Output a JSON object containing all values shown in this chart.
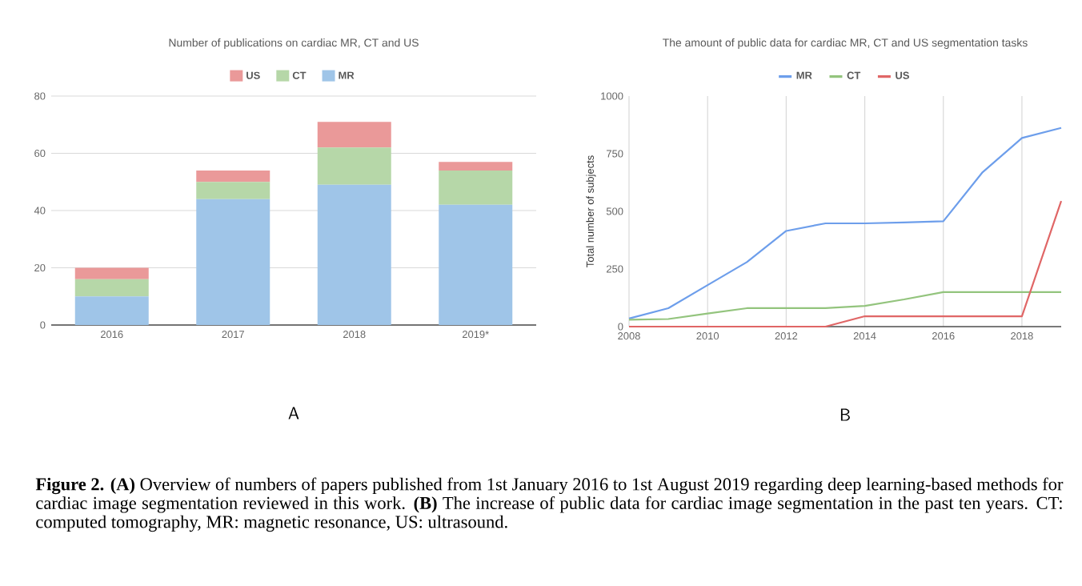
{
  "chart_data": [
    {
      "type": "bar",
      "title": "Number of publications on cardiac MR, CT and US",
      "stacked": true,
      "legend": "top",
      "grid": "y",
      "categories": [
        "2016",
        "2017",
        "2018",
        "2019*"
      ],
      "series": [
        {
          "name": "MR",
          "color": "#9fc5e8",
          "values": [
            10,
            44,
            49,
            42
          ]
        },
        {
          "name": "CT",
          "color": "#b6d7a8",
          "values": [
            6,
            6,
            13,
            12
          ]
        },
        {
          "name": "US",
          "color": "#ea9999",
          "values": [
            4,
            4,
            9,
            3
          ]
        }
      ],
      "ylim": [
        0,
        80
      ],
      "yticks": [
        0,
        20,
        40,
        60,
        80
      ],
      "annotations": [
        "A"
      ]
    },
    {
      "type": "line",
      "title": "The amount of public data for cardiac MR, CT and US segmentation tasks",
      "legend": "top",
      "grid": "x",
      "ylabel": "Total number of subjects",
      "x": [
        2008,
        2009,
        2010,
        2011,
        2012,
        2013,
        2014,
        2015,
        2016,
        2017,
        2018,
        2019
      ],
      "series": [
        {
          "name": "MR",
          "color": "#6d9eeb",
          "values": [
            35,
            80,
            180,
            280,
            415,
            448,
            448,
            452,
            457,
            670,
            818,
            862
          ]
        },
        {
          "name": "CT",
          "color": "#93c47d",
          "values": [
            30,
            33,
            57,
            80,
            80,
            80,
            90,
            118,
            150,
            150,
            150,
            150
          ]
        },
        {
          "name": "US",
          "color": "#e06666",
          "values": [
            0,
            0,
            0,
            0,
            0,
            0,
            45,
            45,
            45,
            45,
            45,
            545
          ]
        }
      ],
      "xlim": [
        2008,
        2019
      ],
      "xticks": [
        2008,
        2010,
        2012,
        2014,
        2016,
        2018
      ],
      "ylim": [
        0,
        1000
      ],
      "yticks": [
        0,
        250,
        500,
        750,
        1000
      ],
      "annotations": [
        "B"
      ]
    },
    {
      "type": "other",
      "annotations": [
        "**Figure 2.** **(A)** Overview of numbers of papers published from 1st January 2016 to 1st August 2019 regarding deep learning-based methods for cardiac image segmentation reviewed in this work. **(B)** The increase of public data for cardiac image segmentation in the past ten years. CT: computed tomography, MR: magnetic resonance, US: ultrasound."
      ]
    }
  ]
}
